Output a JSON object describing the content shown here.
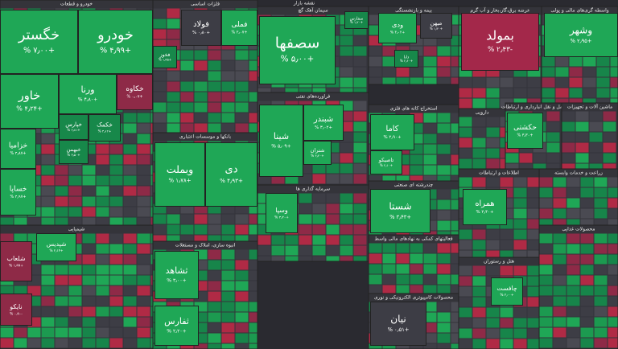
{
  "title": "نقشه بازار",
  "sectors": [
    {
      "name": "خودرو و قطعات",
      "tiles": [
        {
          "name": "خگستر",
          "change": "+۷٫۰۰ %",
          "color": "#1fa756"
        },
        {
          "name": "خودرو",
          "change": "+۴٫۹۹ %",
          "color": "#1fa756"
        },
        {
          "name": "خاور",
          "change": "+۴٫۲۴ %",
          "color": "#1fa756"
        },
        {
          "name": "ورنا",
          "change": "+۴٫۸۰ %",
          "color": "#1fa756"
        },
        {
          "name": "خکاوه",
          "change": "+۰٫۰۷ %",
          "color": "#8e2a47"
        },
        {
          "name": "خزامیا",
          "change": "+۴٫۸۷ %",
          "color": "#1fa756"
        },
        {
          "name": "خساپا",
          "change": "+۴٫۹۷ %",
          "color": "#1fa756"
        },
        {
          "name": "خکمک",
          "change": "+۳٫۱۲ %",
          "color": "#17884a"
        },
        {
          "name": "خپارس",
          "change": "+۲٫۸۱ %",
          "color": "#17884a"
        },
        {
          "name": "خبهمن",
          "change": "+۳٫۵۰ %",
          "color": "#17884a"
        }
      ]
    },
    {
      "name": "فلزات اساسی",
      "tiles": [
        {
          "name": "فولاد",
          "change": "+۰٫۸۰ %",
          "color": "#3d3d45"
        },
        {
          "name": "فملی",
          "change": "+۲٫۰۷ %",
          "color": "#1fa756"
        },
        {
          "name": "فخوز",
          "change": "+۱٫۴۵ %",
          "color": "#17884a"
        }
      ]
    },
    {
      "name": "سیمان آهک گچ",
      "tiles": [
        {
          "name": "سصفها",
          "change": "+۵٫۰۰ %",
          "color": "#1fa756"
        },
        {
          "name": "سفارس",
          "change": "+۱٫۲۰ %",
          "color": "#17884a"
        }
      ]
    },
    {
      "name": "بیمه و بازنشستگی",
      "tiles": [
        {
          "name": "ودی",
          "change": "+۳٫۰۲ %",
          "color": "#1fa756"
        },
        {
          "name": "میهن",
          "change": "+۱٫۳۰ %",
          "color": "#3d3d45"
        },
        {
          "name": "دانا",
          "change": "+۲٫۶۰ %",
          "color": "#17884a"
        }
      ]
    },
    {
      "name": "عرضه برق،گاز،بخار و آب گرم",
      "tiles": [
        {
          "name": "بمولد",
          "change": "-۲٫۴۳ %",
          "color": "#a3284a"
        }
      ]
    },
    {
      "name": "واسطه گری‌های مالی و پولی",
      "tiles": [
        {
          "name": "وشهر",
          "change": "+۲٫۹۵ %",
          "color": "#1fa756"
        }
      ]
    },
    {
      "name": "فراورده‌های نفتی",
      "tiles": [
        {
          "name": "شینا",
          "change": "+۵٫۰۹ %",
          "color": "#1fa756"
        },
        {
          "name": "شبندر",
          "change": "+۳٫۰۲ %",
          "color": "#1fa756"
        },
        {
          "name": "شتران",
          "change": "+۴٫۴۰ %",
          "color": "#1fa756"
        }
      ]
    },
    {
      "name": "بانکها و موسسات اعتباری",
      "tiles": [
        {
          "name": "وبملت",
          "change": "+۱٫۷۸ %",
          "color": "#1fa756"
        },
        {
          "name": "دی",
          "change": "+۴٫۹۳ %",
          "color": "#1fa756"
        }
      ]
    },
    {
      "name": "استخراج کانه های فلزی",
      "tiles": [
        {
          "name": "کاما",
          "change": "+۲٫۹۰ %",
          "color": "#1fa756"
        },
        {
          "name": "تاصیکو",
          "change": "+۲٫۱۰ %",
          "color": "#1fa756"
        }
      ]
    },
    {
      "name": "دارویی",
      "tiles": []
    },
    {
      "name": "حمل و نقل انبارداری و ارتباطات",
      "tiles": [
        {
          "name": "حکشتی",
          "change": "+۳٫۳۰ %",
          "color": "#1fa756"
        }
      ]
    },
    {
      "name": "ماشین آلات و تجهیزات",
      "tiles": []
    },
    {
      "name": "شیمیایی",
      "tiles": [
        {
          "name": "شلعاب",
          "change": "+۱٫۹۹ %",
          "color": "#8e2a47"
        },
        {
          "name": "شپدیس",
          "change": "+۲٫۱۴ %",
          "color": "#1fa756"
        },
        {
          "name": "نایکو",
          "change": "-۰٫۹۰ %",
          "color": "#8e2a47"
        }
      ]
    },
    {
      "name": "انبوه سازی، املاک و مستغلات",
      "tiles": [
        {
          "name": "ثشاهد",
          "change": "+۳٫۰۰ %",
          "color": "#1fa756"
        },
        {
          "name": "ثفارس",
          "change": "+۲٫۲۰ %",
          "color": "#1fa756"
        }
      ]
    },
    {
      "name": "سرمایه گذاری ها",
      "tiles": [
        {
          "name": "وسپا",
          "change": "+۳٫۲۰ %",
          "color": "#1fa756"
        }
      ]
    },
    {
      "name": "چندرشته ای صنعتی",
      "tiles": [
        {
          "name": "شستا",
          "change": "+۳٫۴۳ %",
          "color": "#1fa756"
        }
      ]
    },
    {
      "name": "فعالیتهای کمکی به نهادهای مالی واسط",
      "tiles": []
    },
    {
      "name": "محصولات کامپیوتری الکترونیکی و نوری",
      "tiles": [
        {
          "name": "نیان",
          "change": "+۰٫۵۱ %",
          "color": "#3d3d45"
        }
      ]
    },
    {
      "name": "اطلاعات و ارتباطات",
      "tiles": [
        {
          "name": "همراه",
          "change": "+۲٫۴۰ %",
          "color": "#1fa756"
        }
      ]
    },
    {
      "name": "زراعت و خدمات وابسته",
      "tiles": []
    },
    {
      "name": "هتل و رستوران",
      "tiles": [
        {
          "name": "چافست",
          "change": "+۲٫۰۰ %",
          "color": "#1fa756"
        }
      ]
    },
    {
      "name": "محصولات غذایی",
      "tiles": []
    }
  ]
}
